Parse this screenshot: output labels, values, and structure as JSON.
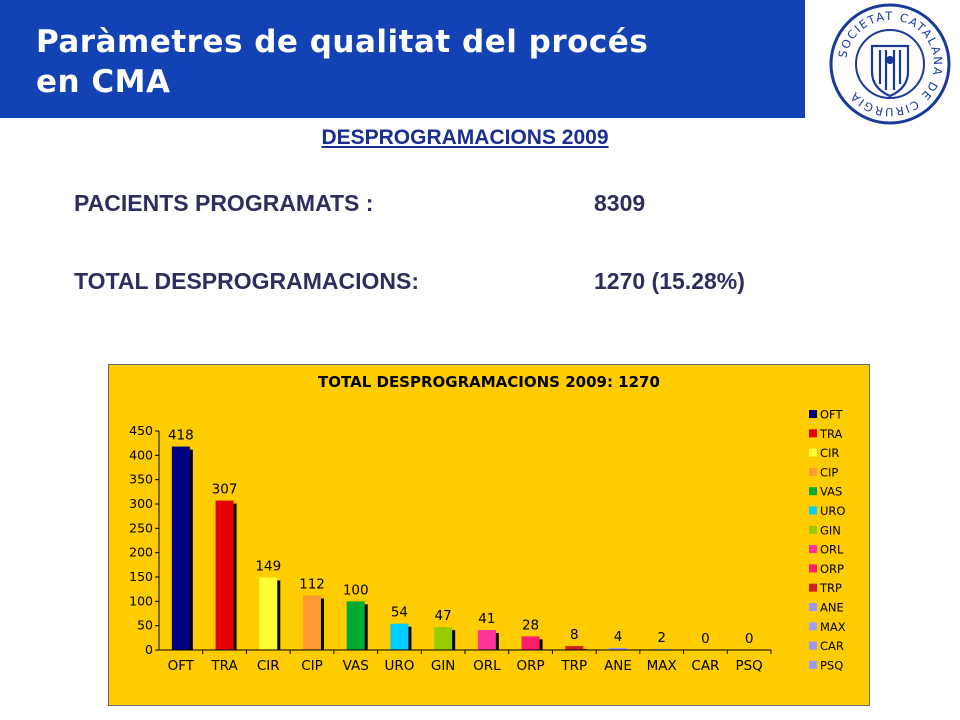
{
  "header": {
    "title_line1": "Paràmetres de qualitat del procés",
    "title_line2": "en CMA"
  },
  "logo": {
    "name": "seal-logo",
    "text": "SOCIETAT CATALANA DE CIRURGIA",
    "color": "#1a3a9a"
  },
  "subtitle": "DESPROGRAMACIONS  2009",
  "stats": [
    {
      "label": "PACIENTS PROGRAMATS :",
      "value": "8309"
    },
    {
      "label": "TOTAL DESPROGRAMACIONS:",
      "value": "1270 (15.28%)"
    }
  ],
  "chart_data": {
    "type": "bar",
    "title": "TOTAL DESPROGRAMACIONS 2009: 1270",
    "categories": [
      "OFT",
      "TRA",
      "CIR",
      "CIP",
      "VAS",
      "URO",
      "GIN",
      "ORL",
      "ORP",
      "TRP",
      "ANE",
      "MAX",
      "CAR",
      "PSQ"
    ],
    "values": [
      418,
      307,
      149,
      112,
      100,
      54,
      47,
      41,
      28,
      8,
      4,
      2,
      0,
      0
    ],
    "colors": [
      "#000080",
      "#e60000",
      "#ffff33",
      "#ff9933",
      "#00aa33",
      "#00ccff",
      "#99cc00",
      "#ff3399",
      "#ff1f6f",
      "#d02020",
      "#9999ff",
      "#a0a0ff",
      "#9999ff",
      "#9999ff"
    ],
    "ylim": [
      0,
      450
    ],
    "yticks": [
      "0",
      "50",
      "100",
      "150",
      "200",
      "250",
      "300",
      "350",
      "400",
      "450"
    ],
    "legend": {
      "placement": "right",
      "entries": [
        "OFT",
        "TRA",
        "CIR",
        "CIP",
        "VAS",
        "URO",
        "GIN",
        "ORL",
        "ORP",
        "TRP",
        "ANE",
        "MAX",
        "CAR",
        "PSQ"
      ]
    },
    "background": "#ffcc00",
    "grid": false
  }
}
